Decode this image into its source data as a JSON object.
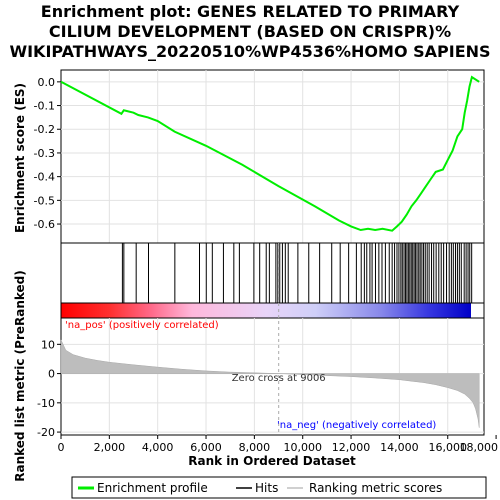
{
  "chart_data": {
    "type": "line",
    "title_lines": [
      "Enrichment plot: GENES RELATED TO PRIMARY",
      "CILIUM DEVELOPMENT (BASED ON CRISPR)%",
      "WIKIPATHWAYS_20220510%WP4536%HOMO SAPIENS"
    ],
    "es_axis": {
      "label": "Enrichment score (ES)",
      "ylim": [
        -0.68,
        0.05
      ],
      "ticks": [
        0.0,
        -0.1,
        -0.2,
        -0.3,
        -0.4,
        -0.5,
        -0.6
      ],
      "tick_labels": [
        "0.0",
        "-0.1",
        "-0.2",
        "-0.3",
        "-0.4",
        "-0.5",
        "-0.6"
      ]
    },
    "rank_axis": {
      "label": "Ranked list metric (PreRanked)",
      "ylim": [
        -21,
        19
      ],
      "ticks": [
        10,
        0,
        -10,
        -20
      ],
      "tick_labels": [
        "10",
        "0",
        "-10",
        "-20"
      ]
    },
    "x_axis": {
      "label": "Rank in Ordered Dataset",
      "xlim": [
        0,
        17500
      ],
      "ticks": [
        0,
        2000,
        4000,
        6000,
        8000,
        10000,
        12000,
        14000,
        16000,
        18000
      ],
      "tick_labels": [
        "0",
        "2,000",
        "4,000",
        "6,000",
        "8,000",
        "10,000",
        "12,000",
        "14,000",
        "16,000",
        "18,000"
      ]
    },
    "n_genes": 17300,
    "enrichment_profile": {
      "color": "#00ee00",
      "x": [
        0,
        2500,
        2600,
        3000,
        3200,
        3600,
        4000,
        4700,
        6000,
        7500,
        9000,
        10500,
        11500,
        12000,
        12400,
        12700,
        13000,
        13300,
        13700,
        13900,
        14100,
        14300,
        14500,
        14700,
        14900,
        15100,
        15300,
        15500,
        15800,
        16000,
        16200,
        16400,
        16600,
        16700,
        16800,
        16900,
        17000,
        17300
      ],
      "y": [
        0.0,
        -0.135,
        -0.12,
        -0.13,
        -0.14,
        -0.15,
        -0.165,
        -0.21,
        -0.27,
        -0.35,
        -0.44,
        -0.525,
        -0.585,
        -0.61,
        -0.625,
        -0.62,
        -0.625,
        -0.62,
        -0.628,
        -0.61,
        -0.59,
        -0.56,
        -0.525,
        -0.5,
        -0.47,
        -0.44,
        -0.41,
        -0.38,
        -0.37,
        -0.33,
        -0.29,
        -0.23,
        -0.2,
        -0.13,
        -0.08,
        -0.02,
        0.02,
        0.0
      ]
    },
    "hits": [
      2540,
      2600,
      3110,
      3620,
      4710,
      5730,
      6010,
      6260,
      6720,
      7150,
      7380,
      7980,
      8220,
      8490,
      8620,
      8890,
      8970,
      9050,
      9160,
      9280,
      9400,
      9800,
      10250,
      10700,
      11200,
      11550,
      11900,
      12220,
      12420,
      12550,
      12650,
      12780,
      12870,
      13010,
      13150,
      13280,
      13420,
      13580,
      13700,
      13800,
      13900,
      13980,
      14060,
      14120,
      14190,
      14250,
      14310,
      14370,
      14430,
      14490,
      14550,
      14610,
      14670,
      14730,
      14800,
      14860,
      14930,
      15000,
      15070,
      15150,
      15230,
      15330,
      15420,
      15520,
      15630,
      15730,
      15830,
      15950,
      16060,
      16150,
      16230,
      16320,
      16400,
      16480,
      16560,
      16680,
      16760,
      16840,
      16910,
      16990
    ],
    "ranked_metric": {
      "x": [
        0,
        200,
        500,
        1000,
        1500,
        2000,
        3000,
        4000,
        5000,
        6000,
        7000,
        8000,
        9006,
        10000,
        11000,
        12000,
        13000,
        14000,
        14500,
        15000,
        15500,
        16000,
        16400,
        16700,
        16900,
        17050,
        17150,
        17250,
        17300
      ],
      "y": [
        11.5,
        8.0,
        6.5,
        5.3,
        4.5,
        3.9,
        3.0,
        2.2,
        1.5,
        0.9,
        0.5,
        0.25,
        0.0,
        -0.35,
        -0.7,
        -1.05,
        -1.5,
        -2.1,
        -2.6,
        -3.1,
        -3.8,
        -4.8,
        -5.8,
        -7.0,
        -8.5,
        -10.0,
        -12.0,
        -15.5,
        -18.5
      ]
    },
    "annotations": {
      "pos_label": "'na_pos' (positively correlated)",
      "neg_label": "'na_neg' (negatively correlated)",
      "zero_cross": "Zero cross at 9006",
      "zero_cross_rank": 9006
    },
    "colors": {
      "pos_label": "#ff0000",
      "neg_label": "#0000ff",
      "gradient": [
        "#ff0000",
        "#ff4b5a",
        "#ffb0d8",
        "#e6ccf5",
        "#d0d0f8",
        "#8a8aec",
        "#3333e0",
        "#0000c8"
      ]
    },
    "legend": {
      "items": [
        {
          "label": "Enrichment profile",
          "color": "#00ee00"
        },
        {
          "label": "Hits",
          "color": "#000000"
        },
        {
          "label": "Ranking metric scores",
          "color": "#c0c0c0"
        }
      ]
    }
  }
}
